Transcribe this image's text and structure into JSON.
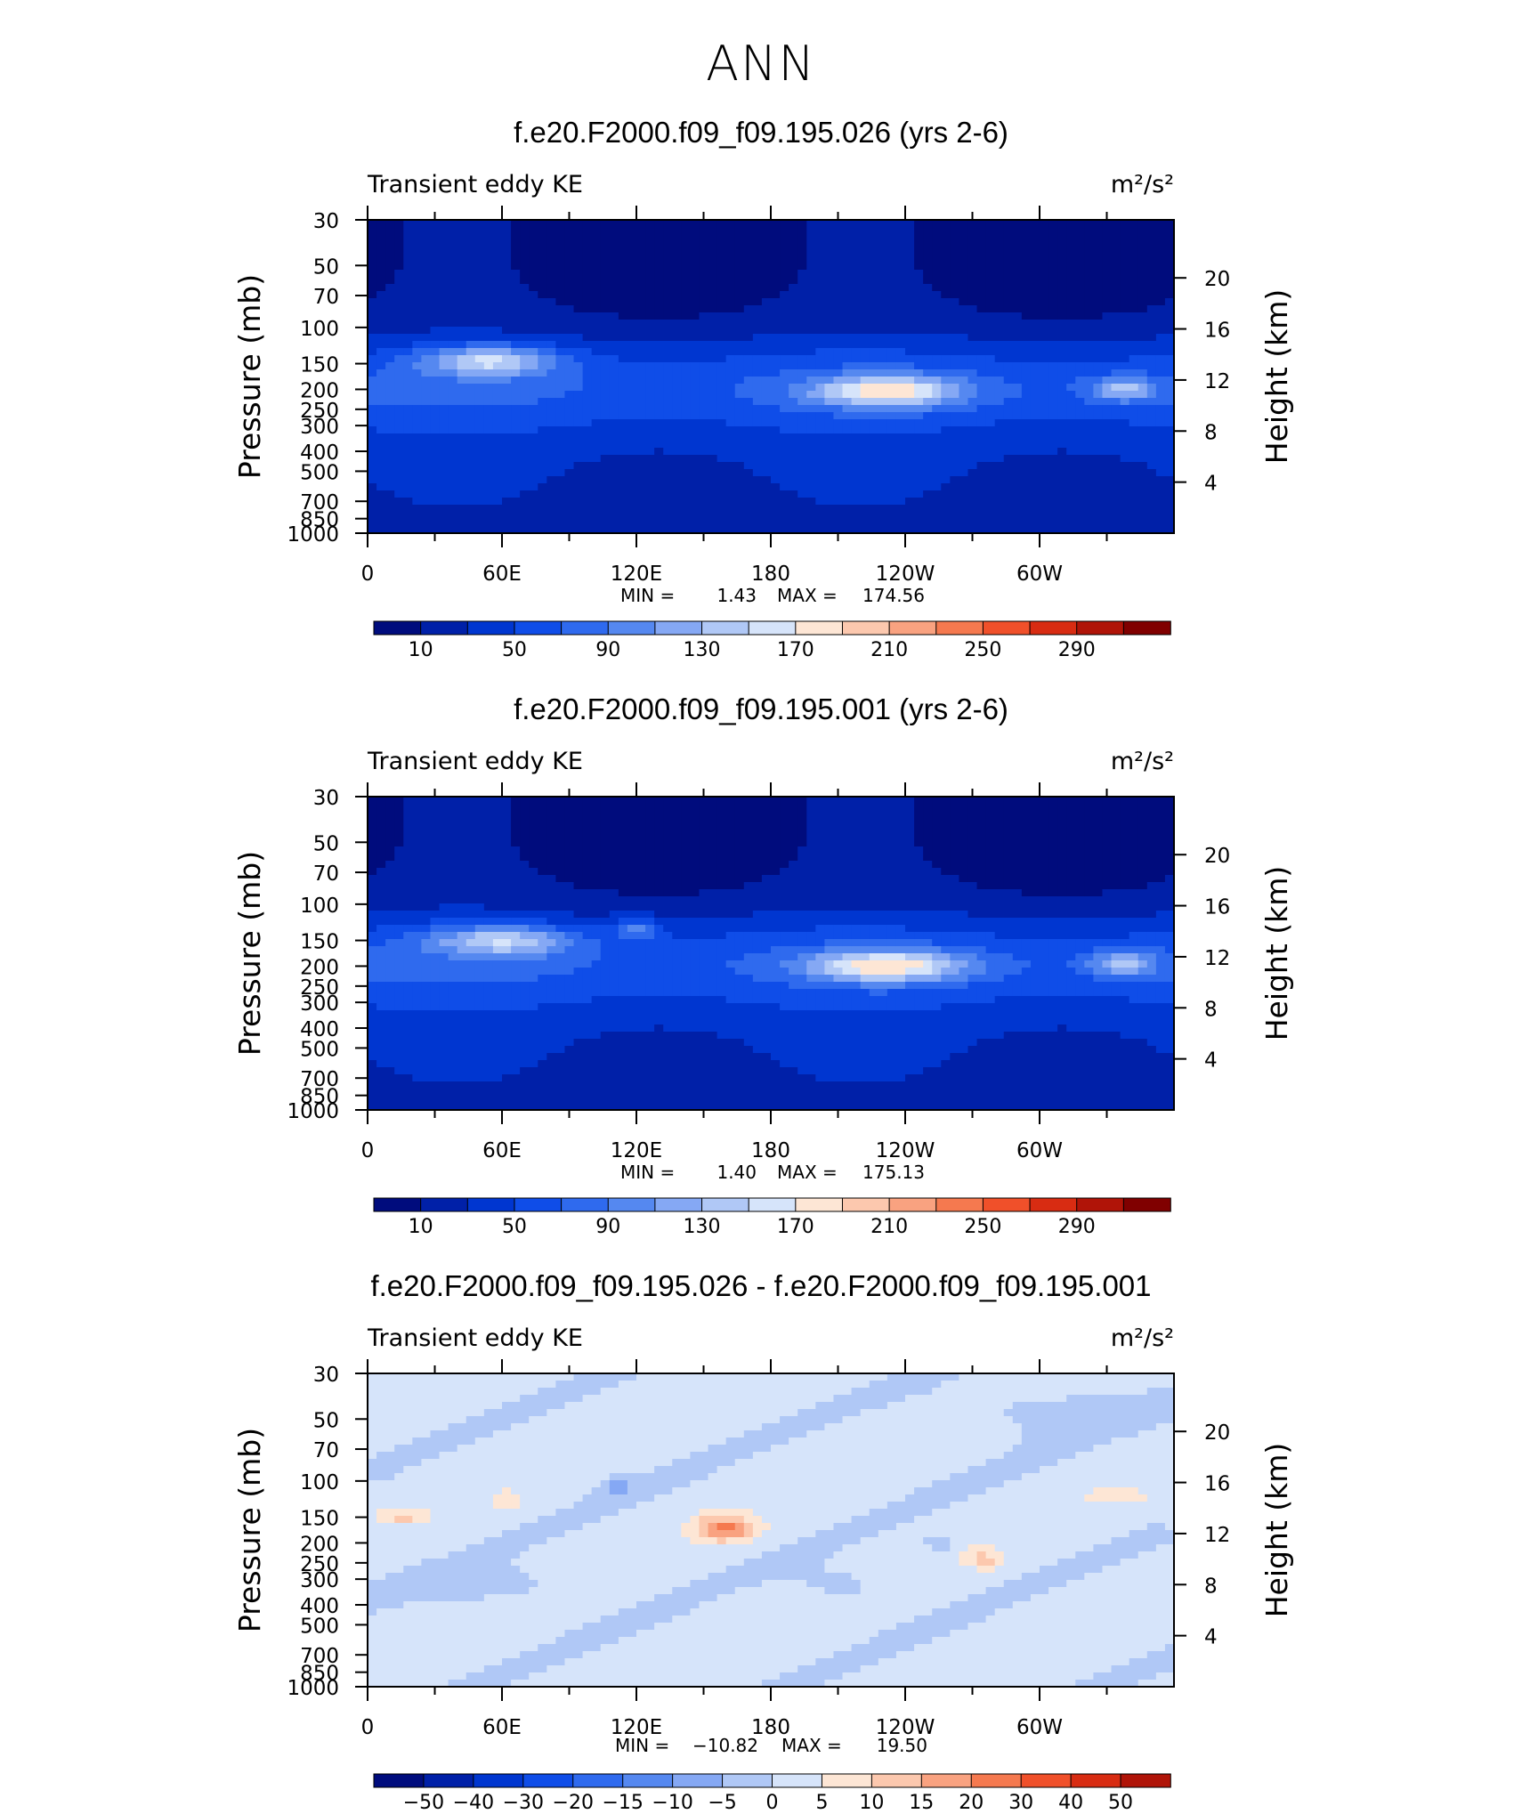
{
  "title": "ANN",
  "chart_data": [
    {
      "type": "heatmap",
      "title": "f.e20.F2000.f09_f09.195.026 (yrs 2-6)",
      "left_label": "Transient eddy KE",
      "units": "m²/s²",
      "ylabel": "Pressure (mb)",
      "y2label": "Height (km)",
      "x_tick_labels": [
        "0",
        "60E",
        "120E",
        "180",
        "120W",
        "60W"
      ],
      "y_tick_labels": [
        "30",
        "50",
        "70",
        "100",
        "150",
        "200",
        "250",
        "300",
        "400",
        "500",
        "700",
        "850",
        "1000"
      ],
      "y2_tick_labels": [
        "20",
        "16",
        "12",
        "8",
        "4"
      ],
      "min_label": "MIN =",
      "min_value": "1.43",
      "max_label": "MAX =",
      "max_value": "174.56",
      "colorbar_labels": [
        "10",
        "50",
        "90",
        "130",
        "170",
        "210",
        "250",
        "290"
      ],
      "colorbar_colors": [
        "#000c7d",
        "#0020a8",
        "#0036d0",
        "#0f4de8",
        "#2f6aee",
        "#5588f0",
        "#85a8f4",
        "#b0c8f6",
        "#d6e4fa",
        "#fde6d5",
        "#fcc8ae",
        "#f9a280",
        "#f5794f",
        "#f0502a",
        "#d82c12",
        "#b01408",
        "#800000"
      ],
      "features": [
        {
          "lon": 55,
          "p": 145,
          "peak": 156,
          "w": 30,
          "hp": 0.17
        },
        {
          "lon": 232,
          "p": 205,
          "peak": 174.56,
          "w": 32,
          "hp": 0.17
        },
        {
          "lon": 337,
          "p": 200,
          "peak": 135,
          "w": 14,
          "hp": 0.13
        }
      ]
    },
    {
      "type": "heatmap",
      "title": "f.e20.F2000.f09_f09.195.001 (yrs 2-6)",
      "left_label": "Transient eddy KE",
      "units": "m²/s²",
      "ylabel": "Pressure (mb)",
      "y2label": "Height (km)",
      "x_tick_labels": [
        "0",
        "60E",
        "120E",
        "180",
        "120W",
        "60W"
      ],
      "y_tick_labels": [
        "30",
        "50",
        "70",
        "100",
        "150",
        "200",
        "250",
        "300",
        "400",
        "500",
        "700",
        "850",
        "1000"
      ],
      "y2_tick_labels": [
        "20",
        "16",
        "12",
        "8",
        "4"
      ],
      "min_label": "MIN =",
      "min_value": "1.40",
      "max_label": "MAX =",
      "max_value": "175.13",
      "colorbar_labels": [
        "10",
        "50",
        "90",
        "130",
        "170",
        "210",
        "250",
        "290"
      ],
      "colorbar_colors": [
        "#000c7d",
        "#0020a8",
        "#0036d0",
        "#0f4de8",
        "#2f6aee",
        "#5588f0",
        "#85a8f4",
        "#b0c8f6",
        "#d6e4fa",
        "#fde6d5",
        "#fcc8ae",
        "#f9a280",
        "#f5794f",
        "#f0502a",
        "#d82c12",
        "#b01408",
        "#800000"
      ],
      "features": [
        {
          "lon": 60,
          "p": 150,
          "peak": 148,
          "w": 32,
          "hp": 0.17
        },
        {
          "lon": 120,
          "p": 130,
          "peak": 115,
          "w": 10,
          "hp": 0.12
        },
        {
          "lon": 232,
          "p": 200,
          "peak": 175.13,
          "w": 34,
          "hp": 0.17
        },
        {
          "lon": 337,
          "p": 195,
          "peak": 138,
          "w": 14,
          "hp": 0.13
        }
      ]
    },
    {
      "type": "heatmap",
      "title": "f.e20.F2000.f09_f09.195.026 - f.e20.F2000.f09_f09.195.001",
      "left_label": "Transient eddy KE",
      "units": "m²/s²",
      "ylabel": "Pressure (mb)",
      "y2label": "Height (km)",
      "x_tick_labels": [
        "0",
        "60E",
        "120E",
        "180",
        "120W",
        "60W"
      ],
      "y_tick_labels": [
        "30",
        "50",
        "70",
        "100",
        "150",
        "200",
        "250",
        "300",
        "400",
        "500",
        "700",
        "850",
        "1000"
      ],
      "y2_tick_labels": [
        "20",
        "16",
        "12",
        "8",
        "4"
      ],
      "min_label": "MIN =",
      "min_value": "−10.82",
      "max_label": "MAX =",
      "max_value": "19.50",
      "colorbar_labels": [
        "−50",
        "−40",
        "−30",
        "−20",
        "−15",
        "−10",
        "−5",
        "0",
        "5",
        "10",
        "15",
        "20",
        "30",
        "40",
        "50"
      ],
      "colorbar_colors": [
        "#000c7d",
        "#0020a8",
        "#0036d0",
        "#0f4de8",
        "#2f6aee",
        "#5588f0",
        "#85a8f4",
        "#b0c8f6",
        "#d6e4fa",
        "#fde6d5",
        "#fcc8ae",
        "#f9a280",
        "#f5794f",
        "#f0502a",
        "#d82c12",
        "#b01408"
      ],
      "features": [
        {
          "lon": 160,
          "p": 170,
          "value": 19.5,
          "w": 14,
          "hp": 0.15
        },
        {
          "lon": 15,
          "p": 148,
          "value": 9,
          "w": 12,
          "hp": 0.1
        },
        {
          "lon": 62,
          "p": 125,
          "value": 6,
          "w": 8,
          "hp": 0.12
        },
        {
          "lon": 275,
          "p": 240,
          "value": 10,
          "w": 9,
          "hp": 0.12
        },
        {
          "lon": 335,
          "p": 120,
          "value": 6,
          "w": 14,
          "hp": 0.1
        },
        {
          "lon": 112,
          "p": 110,
          "value": -10.82,
          "w": 6,
          "hp": 0.1
        },
        {
          "lon": 255,
          "p": 200,
          "value": -7,
          "w": 5,
          "hp": 0.08
        },
        {
          "lon": 60,
          "p": 330,
          "value": -3,
          "w": 35,
          "hp": 0.2
        },
        {
          "lon": 300,
          "p": 45,
          "value": -3,
          "w": 40,
          "hp": 0.25
        },
        {
          "lon": 215,
          "p": 330,
          "value": -3,
          "w": 22,
          "hp": 0.2
        }
      ]
    }
  ]
}
